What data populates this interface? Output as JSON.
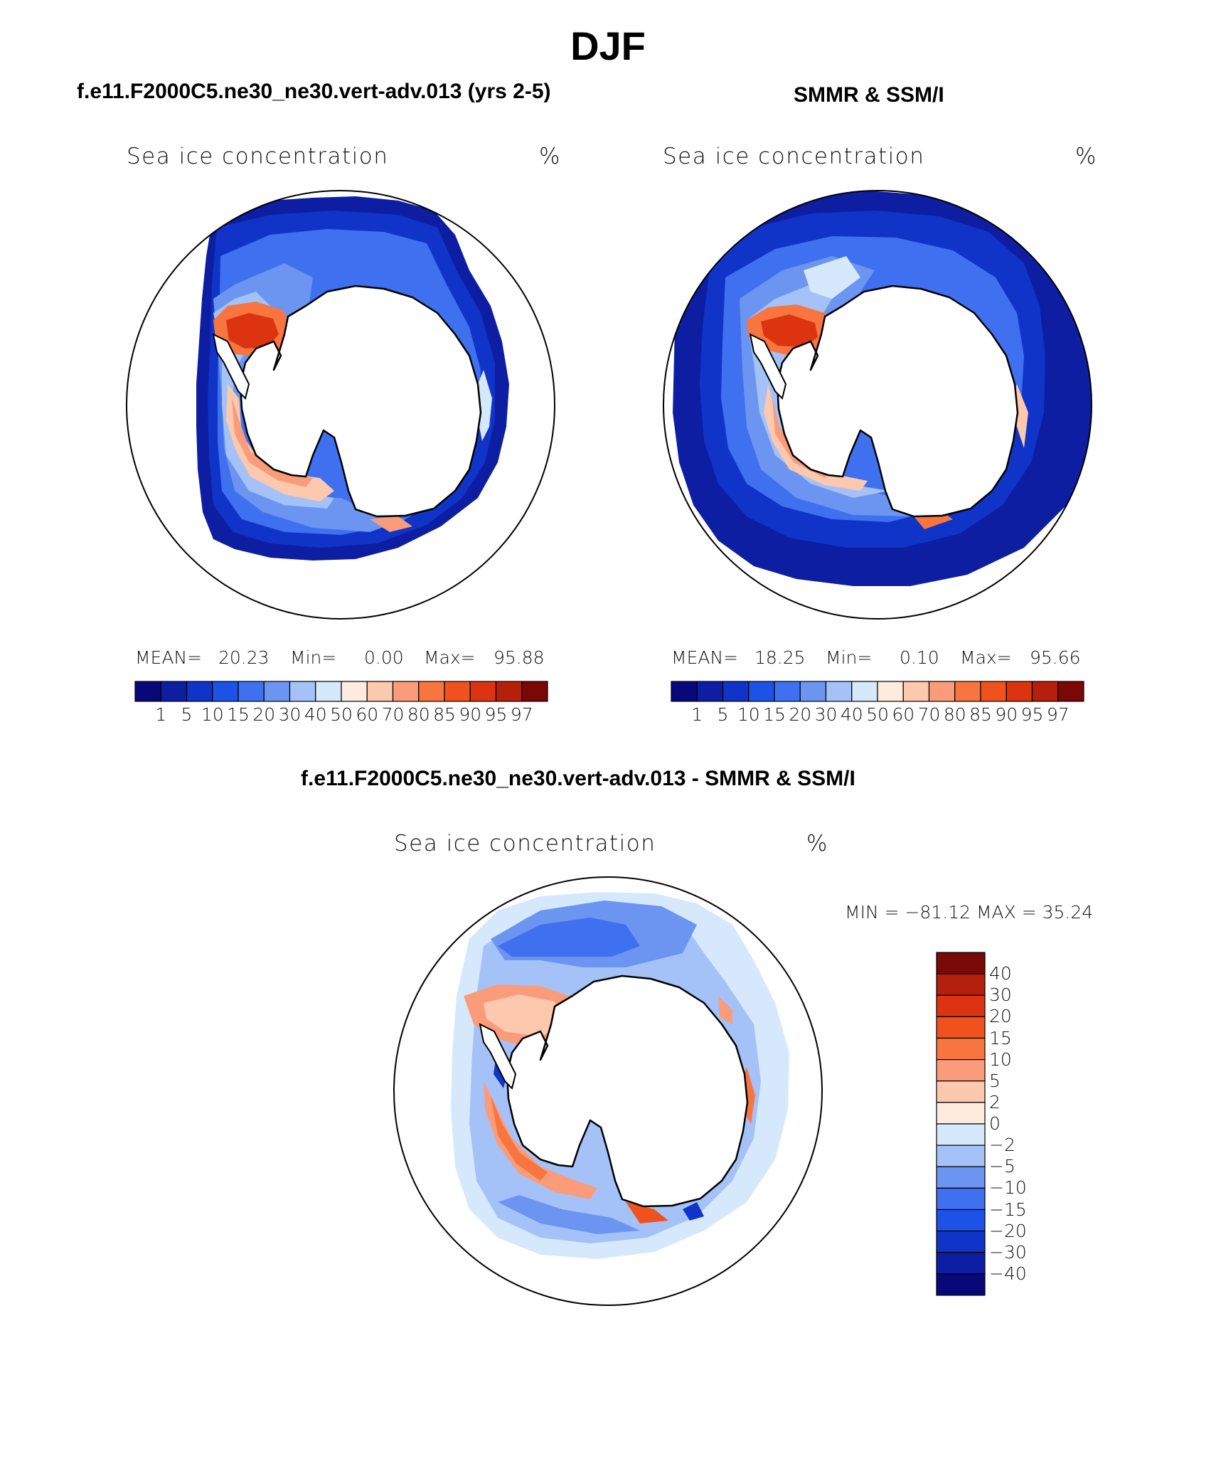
{
  "page": {
    "season": "DJF"
  },
  "colors": {
    "abs_scale": [
      "#08087a",
      "#0d1ea3",
      "#1034c8",
      "#1c52e6",
      "#3f70ef",
      "#6b95f0",
      "#a4c2f7",
      "#d6e8fb",
      "#fdebdd",
      "#fcc8ae",
      "#fa9c7a",
      "#f8753f",
      "#f0521d",
      "#dc3310",
      "#b5200c",
      "#7a0806"
    ],
    "diff_scale": [
      "#7a0806",
      "#b5200c",
      "#dc3310",
      "#f0521d",
      "#f8753f",
      "#fa9c7a",
      "#fcc8ae",
      "#fdebdd",
      "#d6e8fb",
      "#a4c2f7",
      "#6b95f0",
      "#3f70ef",
      "#1c52e6",
      "#1034c8",
      "#0d1ea3",
      "#08087a"
    ]
  },
  "chart_data": [
    {
      "type": "heatmap",
      "panel": "model",
      "title": "f.e11.F2000C5.ne30_ne30.vert-adv.013 (yrs 2-5)",
      "variable": "Sea ice concentration",
      "units": "%",
      "projection": "south polar stereographic",
      "stats": {
        "mean_label": "MEAN=",
        "mean": "20.23",
        "min_label": "Min=",
        "min": "0.00",
        "max_label": "Max=",
        "max": "95.88"
      },
      "colorbar_levels": [
        "1",
        "5",
        "10",
        "15",
        "20",
        "30",
        "40",
        "50",
        "60",
        "70",
        "80",
        "85",
        "90",
        "95",
        "97"
      ],
      "colorbar_orientation": "horizontal"
    },
    {
      "type": "heatmap",
      "panel": "observations",
      "title": "SMMR & SSM/I",
      "variable": "Sea ice concentration",
      "units": "%",
      "projection": "south polar stereographic",
      "stats": {
        "mean_label": "MEAN=",
        "mean": "18.25",
        "min_label": "Min=",
        "min": "0.10",
        "max_label": "Max=",
        "max": "95.66"
      },
      "colorbar_levels": [
        "1",
        "5",
        "10",
        "15",
        "20",
        "30",
        "40",
        "50",
        "60",
        "70",
        "80",
        "85",
        "90",
        "95",
        "97"
      ],
      "colorbar_orientation": "horizontal"
    },
    {
      "type": "heatmap",
      "panel": "difference",
      "title": "f.e11.F2000C5.ne30_ne30.vert-adv.013 - SMMR & SSM/I",
      "variable": "Sea ice concentration",
      "units": "%",
      "projection": "south polar stereographic",
      "stats_text": "MIN = −81.12 MAX =   35.24",
      "colorbar_levels": [
        "40",
        "30",
        "20",
        "15",
        "10",
        "5",
        "2",
        "0",
        "−2",
        "−5",
        "−10",
        "−15",
        "−20",
        "−30",
        "−40"
      ],
      "colorbar_orientation": "vertical"
    }
  ]
}
